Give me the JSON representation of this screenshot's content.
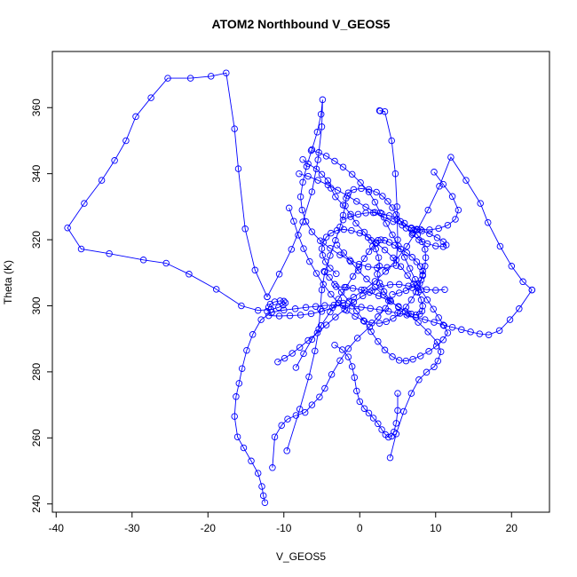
{
  "chart_data": {
    "type": "line",
    "title": "ATOM2 Northbound V_GEOS5",
    "xlabel": "V_GEOS5",
    "ylabel": "Theta (K)",
    "xlim": [
      -40.5,
      25
    ],
    "ylim": [
      237.5,
      377
    ],
    "xticks": [
      -40,
      -30,
      -20,
      -10,
      0,
      10,
      20
    ],
    "yticks": [
      240,
      260,
      280,
      300,
      320,
      340,
      360
    ],
    "grid": false,
    "legend": "none",
    "line_color": "#0000ff",
    "marker": "open-circle",
    "series": [
      {
        "x": [
          -11.5,
          -11.2,
          -10.3,
          -9.5,
          -8.4,
          -7.2,
          -6.3,
          -5.3,
          -4.6,
          -3.7,
          -2.6,
          -1.5,
          -0.3,
          1.3,
          2.4,
          3.4,
          4.0,
          3.2,
          2.6,
          2.3,
          2.6,
          2.5,
          2.1,
          1.5,
          0.6,
          -0.5,
          -1.2,
          -2.2,
          -3.2,
          -3.8,
          -4.2,
          -5.0,
          -5.7,
          -6.8,
          -7.5
        ],
        "y": [
          251.0,
          260.3,
          263.8,
          265.7,
          266.8,
          267.7,
          270.0,
          272.4,
          275.0,
          279.2,
          283.4,
          287.0,
          290.2,
          293.6,
          296.7,
          299.2,
          301.7,
          304.3,
          306.9,
          309.6,
          312.0,
          314.6,
          317.2,
          319.8,
          322.3,
          325.0,
          327.7,
          330.5,
          333.0,
          335.6,
          337.9,
          339.8,
          341.4,
          343.0,
          344.3
        ]
      },
      {
        "x": [
          -6.4,
          -5.4,
          -4.4,
          -3.3,
          -2.2,
          -1.0,
          0.1,
          1.2,
          2.0,
          2.7,
          3.5,
          4.3,
          5.1,
          5.9,
          6.6,
          7.3,
          8.1,
          8.9,
          9.7,
          10.4,
          11.1,
          11.6,
          11.0,
          10.1,
          9.1,
          8.0,
          7.0,
          6.1,
          5.2,
          4.3,
          3.3,
          2.4,
          1.5,
          0.6,
          -0.4,
          -1.4,
          -2.4,
          -3.3,
          -4.0,
          -4.7
        ],
        "y": [
          347.0,
          346.4,
          345.3,
          343.8,
          342.0,
          339.8,
          337.3,
          334.5,
          331.4,
          328.2,
          324.9,
          321.5,
          318.1,
          314.7,
          311.3,
          308.0,
          304.8,
          301.8,
          299.0,
          296.4,
          294.0,
          291.8,
          289.7,
          287.8,
          286.2,
          284.8,
          283.8,
          283.3,
          283.5,
          284.6,
          286.6,
          289.2,
          292.2,
          295.3,
          298.4,
          301.4,
          304.1,
          306.5,
          308.6,
          310.4
        ]
      },
      {
        "x": [
          -9.3,
          -8.7,
          -8.1,
          -7.4,
          -6.6,
          -5.7,
          -4.8,
          -3.8,
          -2.8,
          -1.7,
          -0.6,
          0.5,
          1.6,
          2.6,
          3.5,
          4.4,
          5.3,
          6.1,
          6.8,
          7.4,
          7.9,
          8.3,
          8.6,
          8.7,
          8.6,
          8.2,
          7.6,
          6.8,
          5.9,
          4.9,
          3.9,
          2.9,
          1.8,
          0.8,
          -0.2,
          -1.2,
          -2.2
        ],
        "y": [
          329.6,
          325.6,
          321.4,
          317.3,
          313.4,
          309.8,
          306.5,
          303.5,
          300.8,
          298.6,
          296.8,
          295.5,
          294.8,
          294.7,
          295.2,
          296.2,
          297.7,
          299.6,
          301.8,
          304.2,
          306.8,
          309.4,
          312.0,
          314.6,
          317.1,
          319.4,
          321.5,
          323.4,
          325.0,
          326.3,
          327.3,
          327.9,
          328.2,
          328.1,
          327.7,
          327.0,
          326.0
        ]
      },
      {
        "x": [
          -3.0,
          -2.1,
          -1.2,
          -0.2,
          0.9,
          2.0,
          3.1,
          4.1,
          5.1,
          6.0,
          6.8,
          7.4,
          7.9,
          8.2,
          8.3,
          8.1,
          7.7,
          7.1,
          6.3,
          5.4,
          4.4,
          3.3,
          2.2,
          1.1,
          0.0,
          -1.1,
          -2.1,
          -3.0,
          -3.8,
          -4.4,
          -4.8,
          -5.0,
          -4.9,
          -4.5,
          -3.9,
          -3.1
        ],
        "y": [
          318.4,
          316.0,
          313.4,
          310.7,
          308.1,
          305.6,
          303.3,
          301.3,
          299.6,
          298.3,
          297.5,
          297.2,
          297.5,
          298.4,
          299.9,
          301.8,
          304.1,
          306.6,
          309.2,
          311.9,
          314.5,
          316.9,
          319.0,
          320.7,
          322.0,
          322.8,
          323.1,
          322.8,
          322.0,
          320.8,
          319.2,
          317.3,
          315.3,
          313.3,
          311.4,
          309.7
        ]
      },
      {
        "x": [
          -12.5,
          -12.7,
          -12.9,
          -13.4,
          -14.3,
          -15.3,
          -16.1,
          -16.5,
          -16.3,
          -15.9,
          -15.5,
          -14.9,
          -14.1,
          -13.0,
          -11.6,
          -10.0,
          -8.5,
          -7.1,
          -5.8,
          -4.6,
          -3.4,
          -2.2,
          -1.0,
          0.2,
          1.4,
          2.6,
          3.8,
          5.0,
          6.2,
          7.4,
          8.6,
          9.8,
          11.0,
          12.2,
          13.4,
          14.6,
          15.8,
          17.0,
          18.4,
          19.8,
          21.0,
          22.7
        ],
        "y": [
          240.4,
          242.5,
          245.3,
          249.3,
          253.0,
          257.0,
          260.3,
          266.5,
          272.5,
          276.5,
          281.0,
          286.5,
          291.3,
          295.8,
          298.0,
          298.7,
          299.1,
          299.5,
          299.8,
          300.1,
          300.2,
          300.1,
          299.9,
          299.6,
          299.2,
          298.8,
          298.3,
          297.8,
          297.2,
          296.5,
          295.8,
          295.0,
          294.2,
          293.5,
          292.8,
          292.1,
          291.5,
          291.2,
          292.5,
          295.8,
          299.1,
          304.8
        ]
      },
      {
        "x": [
          22.7,
          21.5,
          20.0,
          18.5,
          16.9,
          15.9,
          14.0,
          12.0,
          10.5,
          9.0,
          7.6,
          6.2,
          4.8,
          3.4,
          2.0,
          0.6,
          -0.8,
          -2.2,
          -3.6,
          -5.0,
          -6.4,
          -7.8,
          -9.2,
          -10.6,
          -12.0
        ],
        "y": [
          304.8,
          307.3,
          312.0,
          318.0,
          325.2,
          331.0,
          338.0,
          345.0,
          336.2,
          329.0,
          323.0,
          318.0,
          313.9,
          310.4,
          307.4,
          304.8,
          302.6,
          300.8,
          299.4,
          298.3,
          297.6,
          297.2,
          297.0,
          296.9,
          297.0
        ]
      },
      {
        "x": [
          -12.2,
          -12.0,
          -11.8,
          -11.2,
          -10.5,
          -10.0,
          -9.8,
          -10.1,
          -10.7,
          -11.7,
          -13.4,
          -15.6,
          -18.9,
          -22.5,
          -25.5,
          -28.5,
          -33.0,
          -36.7,
          -38.5,
          -36.3,
          -34.0,
          -32.3,
          -30.8,
          -29.5,
          -27.5,
          -25.3,
          -22.3,
          -19.6,
          -17.6,
          -16.5,
          -16.0,
          -15.1,
          -13.8,
          -12.2
        ],
        "y": [
          298.3,
          299.6,
          300.5,
          301.2,
          301.5,
          301.4,
          300.9,
          300.2,
          299.5,
          298.9,
          298.6,
          300.0,
          305.0,
          309.6,
          312.9,
          313.9,
          315.8,
          317.2,
          323.6,
          331.0,
          338.0,
          344.0,
          350.0,
          357.3,
          363.0,
          368.9,
          368.9,
          369.5,
          370.5,
          353.6,
          341.5,
          323.3,
          310.8,
          302.7
        ]
      },
      {
        "x": [
          -12.2,
          -10.6,
          -9.0,
          -7.5,
          -6.3,
          -5.5,
          -5.0,
          -4.9,
          -5.1,
          -5.6,
          -6.3,
          -7.0,
          -7.5,
          -7.8,
          -7.6,
          -7.1,
          -6.3,
          -5.2,
          -3.9,
          -2.6,
          -1.3,
          -0.1,
          1.1,
          2.3,
          3.6,
          4.8,
          5.0,
          4.9,
          4.7,
          4.2,
          3.3,
          2.6,
          2.7
        ],
        "y": [
          302.7,
          309.6,
          317.1,
          325.4,
          334.5,
          344.2,
          354.2,
          362.4,
          358.0,
          352.6,
          347.3,
          342.2,
          337.4,
          333.0,
          329.0,
          325.5,
          322.4,
          319.7,
          317.4,
          315.4,
          313.8,
          312.6,
          311.8,
          311.5,
          311.6,
          312.2,
          320.0,
          330.0,
          340.0,
          350.0,
          358.8,
          359.1,
          359.0
        ]
      },
      {
        "x": [
          -9.6,
          -7.9,
          -6.7,
          -5.9,
          -5.4,
          -5.2,
          -5.0,
          -4.6,
          -3.9,
          -3.2,
          -2.6,
          -2.2,
          -1.9,
          -1.8,
          -1.5,
          -0.8,
          0.2,
          1.2,
          2.2,
          3.0,
          3.7,
          4.3,
          4.8,
          5.4,
          6.1,
          6.9,
          7.8,
          8.9,
          10.0,
          11.0,
          11.4,
          11.0,
          10.2,
          9.2,
          8.2,
          7.5,
          7.1,
          7.0
        ],
        "y": [
          256.1,
          268.7,
          278.5,
          286.3,
          292.9,
          299.0,
          304.8,
          310.2,
          315.2,
          319.8,
          323.9,
          327.4,
          330.3,
          332.6,
          334.2,
          335.2,
          335.5,
          335.2,
          334.4,
          333.2,
          331.6,
          329.7,
          327.6,
          325.5,
          323.5,
          321.6,
          320.0,
          318.8,
          318.1,
          317.9,
          318.4,
          319.4,
          320.6,
          321.8,
          322.7,
          323.2,
          322.9,
          322.0
        ]
      },
      {
        "x": [
          -8.4,
          -7.4,
          -6.3,
          -5.1,
          -3.9,
          -2.8,
          -1.8,
          -0.9,
          -0.1,
          0.6,
          1.2,
          1.7,
          2.1,
          2.4,
          2.8,
          3.3,
          3.9,
          4.6,
          5.4,
          6.2,
          6.9,
          7.5,
          8.0,
          8.3,
          8.3,
          8.1,
          7.6,
          6.9,
          6.1,
          5.2,
          4.3
        ],
        "y": [
          281.3,
          285.5,
          289.8,
          294.0,
          298.1,
          302.0,
          305.6,
          308.9,
          311.8,
          314.3,
          316.4,
          318.0,
          319.1,
          319.8,
          320.0,
          319.8,
          319.2,
          318.3,
          317.2,
          316.0,
          314.7,
          313.3,
          311.9,
          310.5,
          309.1,
          307.8,
          306.6,
          305.5,
          304.6,
          303.9,
          303.4
        ]
      },
      {
        "x": [
          4.0,
          4.8,
          5.8,
          6.8,
          7.8,
          8.8,
          9.8,
          10.3,
          10.7,
          10.2,
          9.0,
          7.7,
          6.4,
          5.1,
          3.8,
          2.5,
          1.3,
          0.2,
          -0.9,
          -2.0,
          -3.1
        ],
        "y": [
          254.0,
          261.2,
          268.0,
          273.5,
          277.6,
          279.9,
          281.5,
          283.3,
          286.1,
          289.0,
          292.1,
          295.0,
          297.6,
          299.8,
          301.6,
          303.0,
          304.1,
          304.8,
          305.3,
          305.6,
          305.8
        ]
      },
      {
        "x": [
          -3.3,
          -2.3,
          -1.5,
          -1.0,
          -0.7,
          -0.4,
          0.0,
          0.6,
          1.2,
          1.8,
          2.4,
          2.9,
          3.4,
          3.8,
          4.2,
          4.5,
          4.8,
          5.0,
          5.0
        ],
        "y": [
          288.1,
          286.7,
          284.5,
          281.6,
          278.3,
          274.2,
          271.0,
          268.9,
          267.5,
          266.0,
          264.3,
          262.5,
          261.0,
          260.2,
          260.5,
          261.8,
          264.4,
          268.3,
          273.5
        ]
      },
      {
        "x": [
          -10.8,
          -9.9,
          -8.9,
          -7.9,
          -6.8,
          -5.6,
          -4.4,
          -3.2,
          -2.0,
          -0.8,
          0.4,
          1.6,
          2.8,
          4.0,
          5.2,
          6.4,
          7.6,
          8.8,
          10.0,
          11.2
        ],
        "y": [
          283.0,
          284.1,
          285.6,
          287.4,
          289.5,
          291.8,
          294.2,
          296.6,
          298.9,
          301.1,
          303.0,
          304.6,
          305.8,
          306.4,
          306.5,
          306.0,
          305.4,
          304.9,
          304.7,
          304.9
        ]
      },
      {
        "x": [
          -8.0,
          -6.8,
          -5.5,
          -4.2,
          -2.9,
          -1.6,
          -0.4,
          0.8,
          2.0,
          3.2,
          4.4,
          5.6,
          6.8,
          8.0,
          9.2,
          10.4,
          11.6,
          12.6,
          13.0,
          12.2,
          11.0,
          9.8
        ],
        "y": [
          340.0,
          339.2,
          338.0,
          336.6,
          335.0,
          333.3,
          331.6,
          329.9,
          328.3,
          326.8,
          325.5,
          324.4,
          323.6,
          323.1,
          323.0,
          323.4,
          324.4,
          326.2,
          329.0,
          333.1,
          336.8,
          340.5
        ]
      }
    ]
  }
}
